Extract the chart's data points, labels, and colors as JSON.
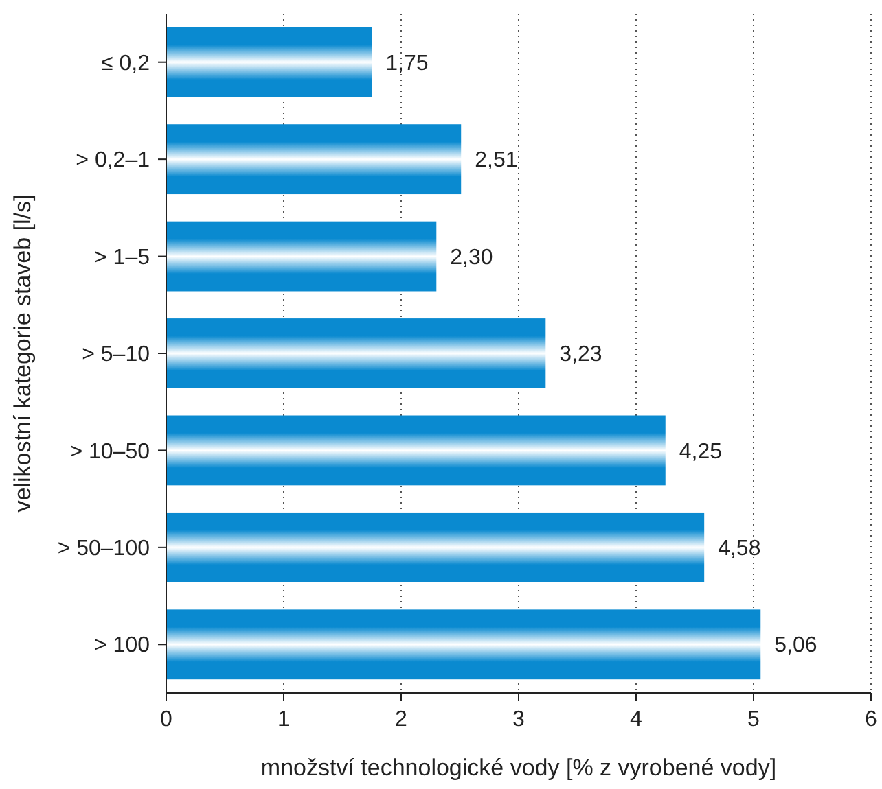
{
  "chart_data": {
    "type": "bar",
    "orientation": "horizontal",
    "xlabel": "množství technologické vody [% z vyrobené vody]",
    "ylabel": "velikostní kategorie staveb [l/s]",
    "categories": [
      "≤ 0,2",
      "> 0,2–1",
      "> 1–5",
      "> 5–10",
      "> 10–50",
      "> 50–100",
      "> 100"
    ],
    "values": [
      1.75,
      2.51,
      2.3,
      3.23,
      4.25,
      4.58,
      5.06
    ],
    "value_labels": [
      "1,75",
      "2,51",
      "2,30",
      "3,23",
      "4,25",
      "4,58",
      "5,06"
    ],
    "color": "#0a8ad0",
    "xlim": [
      0,
      6
    ],
    "xticks": [
      0,
      1,
      2,
      3,
      4,
      5,
      6
    ],
    "grid": "x"
  }
}
